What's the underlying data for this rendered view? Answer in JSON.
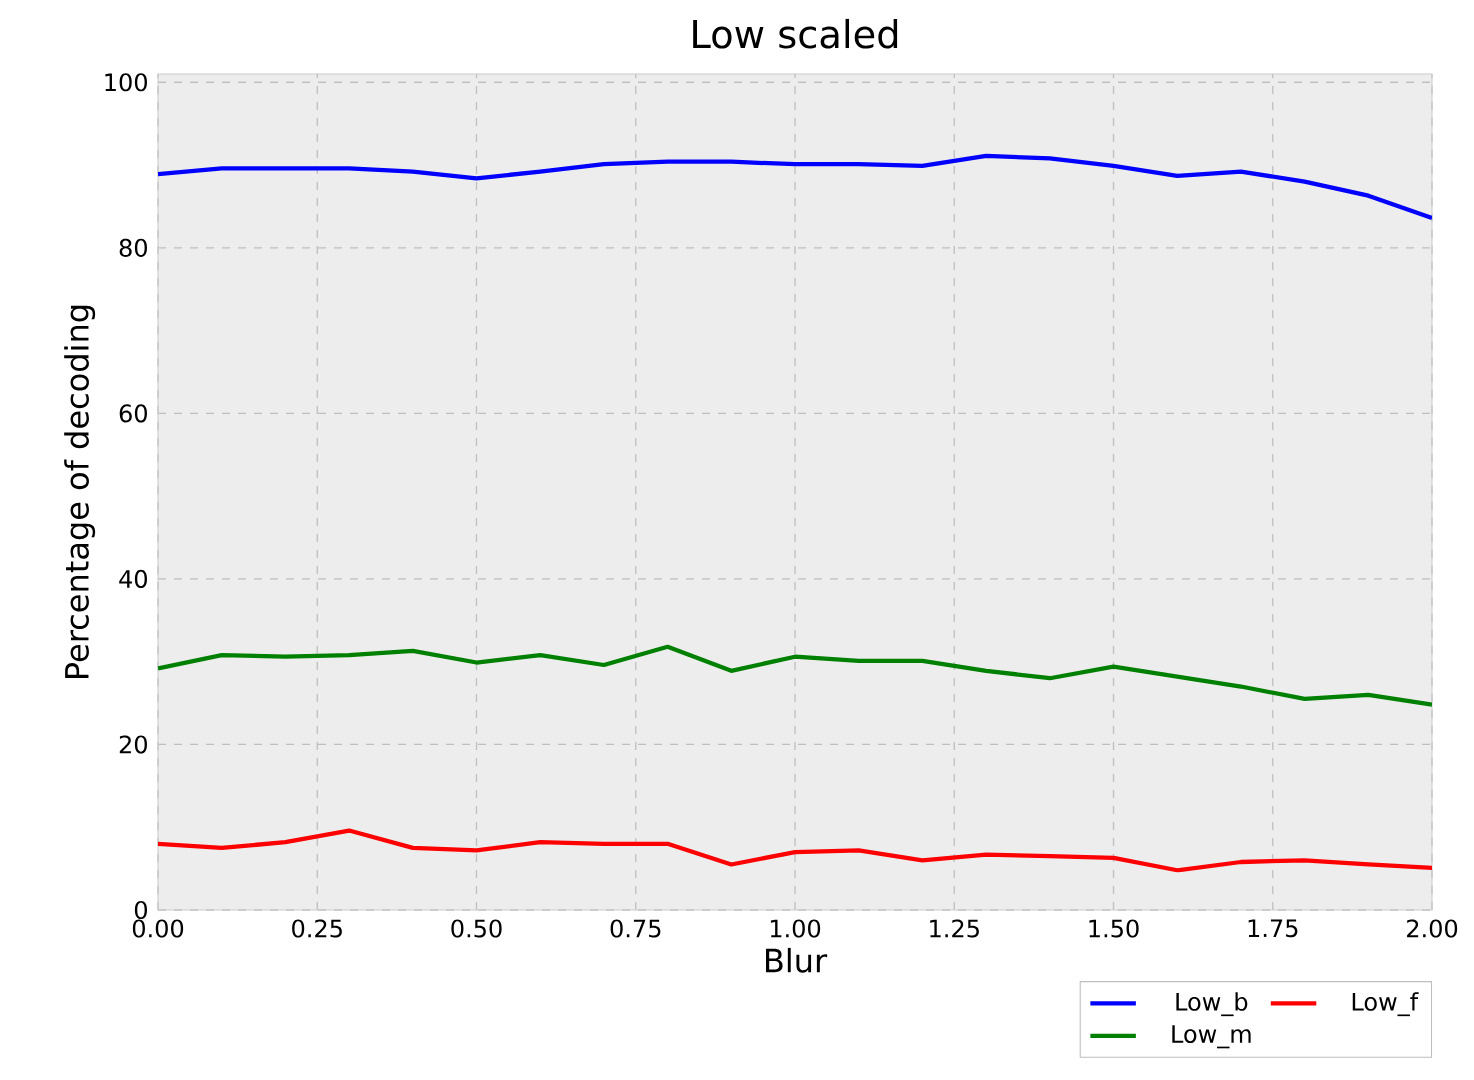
{
  "chart_data": {
    "type": "line",
    "title": "Low scaled",
    "xlabel": "Blur",
    "ylabel": "Percentage of decoding",
    "x": [
      0,
      0.1,
      0.2,
      0.3,
      0.4,
      0.5,
      0.6,
      0.7,
      0.8,
      0.9,
      1.0,
      1.1,
      1.2,
      1.3,
      1.4,
      1.5,
      1.6,
      1.7,
      1.8,
      1.9,
      2.0
    ],
    "series": [
      {
        "name": "Low_b",
        "color": "#0000ff",
        "values": [
          88.9,
          89.6,
          89.6,
          89.6,
          89.2,
          88.4,
          89.2,
          90.1,
          90.4,
          90.4,
          90.1,
          90.1,
          89.9,
          91.1,
          90.8,
          89.9,
          88.7,
          89.2,
          88.0,
          86.3,
          83.6
        ]
      },
      {
        "name": "Low_m",
        "color": "#008000",
        "values": [
          29.2,
          30.8,
          30.6,
          30.8,
          31.3,
          29.9,
          30.8,
          29.6,
          31.8,
          28.9,
          30.6,
          30.1,
          30.1,
          28.9,
          28.0,
          29.4,
          28.2,
          27.0,
          25.5,
          26.0,
          24.8
        ]
      },
      {
        "name": "Low_f",
        "color": "#ff0000",
        "values": [
          8.0,
          7.5,
          8.2,
          9.6,
          7.5,
          7.2,
          8.2,
          8.0,
          8.0,
          5.5,
          7.0,
          7.2,
          6.0,
          6.7,
          6.5,
          6.3,
          4.8,
          5.8,
          6.0,
          5.5,
          5.1
        ]
      }
    ],
    "xlim": [
      0,
      2
    ],
    "ylim": [
      0,
      101
    ],
    "xticks": [
      {
        "value": 0,
        "label": "0.00"
      },
      {
        "value": 0.25,
        "label": "0.25"
      },
      {
        "value": 0.5,
        "label": "0.50"
      },
      {
        "value": 0.75,
        "label": "0.75"
      },
      {
        "value": 1,
        "label": "1.00"
      },
      {
        "value": 1.25,
        "label": "1.25"
      },
      {
        "value": 1.5,
        "label": "1.50"
      },
      {
        "value": 1.75,
        "label": "1.75"
      },
      {
        "value": 2,
        "label": "2.00"
      }
    ],
    "yticks": [
      0,
      20,
      40,
      60,
      80,
      100
    ],
    "grid": true,
    "legend": "bottom right",
    "marker": "none",
    "line_style": "solid"
  }
}
